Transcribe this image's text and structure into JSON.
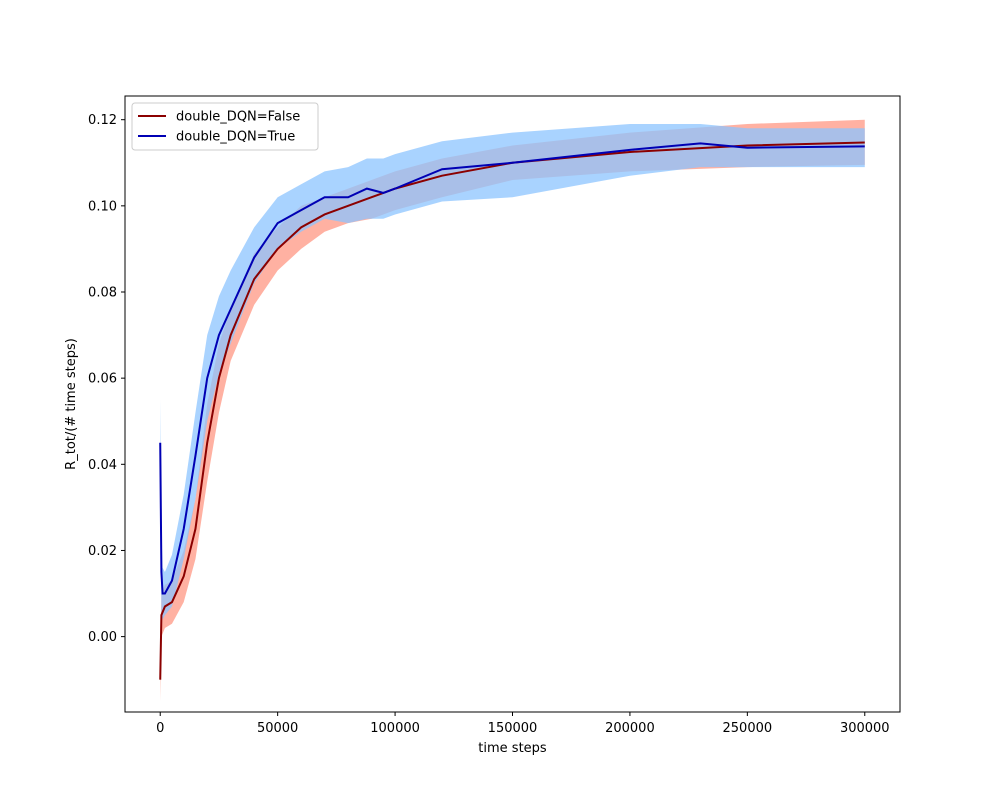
{
  "chart_data": {
    "type": "line",
    "title": "",
    "xlabel": "time steps",
    "ylabel": "R_tot/(# time steps)",
    "xlim": [
      -15000,
      315000
    ],
    "ylim": [
      -0.0175,
      0.1255
    ],
    "xticks": [
      0,
      50000,
      100000,
      150000,
      200000,
      250000,
      300000
    ],
    "xtick_labels": [
      "0",
      "50000",
      "100000",
      "150000",
      "200000",
      "250000",
      "300000"
    ],
    "yticks": [
      0.0,
      0.02,
      0.04,
      0.06,
      0.08,
      0.1,
      0.12
    ],
    "ytick_labels": [
      "0.00",
      "0.02",
      "0.04",
      "0.06",
      "0.08",
      "0.10",
      "0.12"
    ],
    "grid": false,
    "legend_position": "top-left",
    "series": [
      {
        "name": "double_DQN=False",
        "color": "#8b0000",
        "band_color": "#ffa898",
        "x": [
          0,
          500,
          2000,
          5000,
          10000,
          15000,
          20000,
          25000,
          30000,
          40000,
          50000,
          60000,
          70000,
          80000,
          90000,
          100000,
          120000,
          150000,
          200000,
          250000,
          300000
        ],
        "y": [
          -0.01,
          0.005,
          0.007,
          0.008,
          0.014,
          0.025,
          0.045,
          0.06,
          0.07,
          0.083,
          0.09,
          0.095,
          0.098,
          0.1,
          0.102,
          0.104,
          0.107,
          0.11,
          0.1125,
          0.114,
          0.1147
        ],
        "lower": [
          -0.015,
          0.0,
          0.002,
          0.003,
          0.008,
          0.018,
          0.036,
          0.052,
          0.064,
          0.077,
          0.085,
          0.09,
          0.094,
          0.096,
          0.097,
          0.099,
          0.102,
          0.106,
          0.108,
          0.109,
          0.1095
        ],
        "upper": [
          -0.005,
          0.01,
          0.012,
          0.013,
          0.02,
          0.032,
          0.054,
          0.068,
          0.076,
          0.089,
          0.095,
          0.1,
          0.102,
          0.104,
          0.106,
          0.108,
          0.111,
          0.114,
          0.117,
          0.119,
          0.12
        ]
      },
      {
        "name": "double_DQN=True",
        "color": "#0000b4",
        "band_color": "#8cc4ff",
        "x": [
          0,
          500,
          1000,
          2000,
          5000,
          10000,
          15000,
          20000,
          25000,
          30000,
          40000,
          50000,
          60000,
          70000,
          80000,
          88000,
          95000,
          100000,
          120000,
          150000,
          200000,
          230000,
          250000,
          300000
        ],
        "y": [
          0.045,
          0.015,
          0.01,
          0.01,
          0.013,
          0.025,
          0.042,
          0.06,
          0.07,
          0.076,
          0.088,
          0.096,
          0.099,
          0.102,
          0.102,
          0.104,
          0.103,
          0.104,
          0.1085,
          0.11,
          0.113,
          0.1145,
          0.1135,
          0.1138
        ],
        "lower": [
          0.035,
          0.005,
          0.004,
          0.005,
          0.007,
          0.018,
          0.032,
          0.05,
          0.061,
          0.068,
          0.082,
          0.09,
          0.094,
          0.097,
          0.096,
          0.097,
          0.097,
          0.098,
          0.101,
          0.102,
          0.107,
          0.109,
          0.109,
          0.109
        ],
        "upper": [
          0.055,
          0.025,
          0.016,
          0.015,
          0.019,
          0.033,
          0.052,
          0.07,
          0.079,
          0.085,
          0.095,
          0.102,
          0.105,
          0.108,
          0.109,
          0.111,
          0.111,
          0.112,
          0.115,
          0.117,
          0.119,
          0.119,
          0.118,
          0.118
        ]
      }
    ]
  }
}
